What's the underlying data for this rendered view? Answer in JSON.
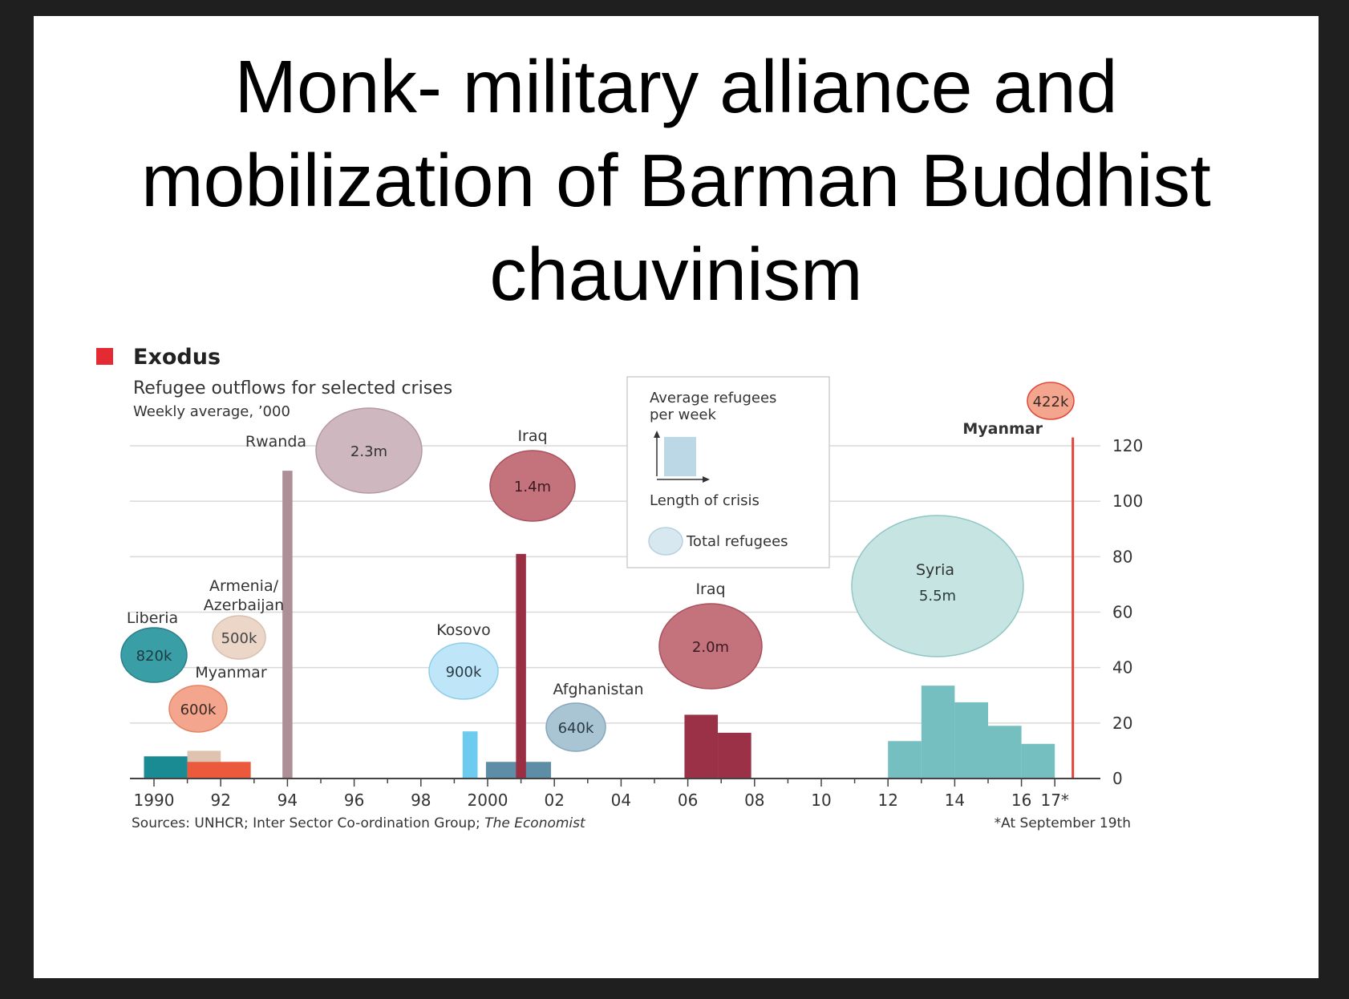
{
  "slide": {
    "title_lines": [
      "Monk- military alliance and",
      "mobilization of Barman Buddhist",
      "chauvinism"
    ]
  },
  "chart_data": {
    "type": "bar",
    "title": "Exodus",
    "subtitle": "Refugee outflows for selected crises",
    "unit_note": "Weekly average, ’000",
    "source": "Sources: UNHCR; Inter Sector Co-ordination Group; The Economist",
    "source_prefix": "Sources: UNHCR; Inter Sector Co-ordination Group; ",
    "source_italic": "The Economist",
    "footnote": "*At September 19th",
    "ylim": [
      0,
      120
    ],
    "yticks": [
      0,
      20,
      40,
      60,
      80,
      100,
      120
    ],
    "xlim": [
      1989,
      2017.8
    ],
    "xtick_labels": [
      {
        "year": 1990,
        "label": "1990"
      },
      {
        "year": 1992,
        "label": "92"
      },
      {
        "year": 1994,
        "label": "94"
      },
      {
        "year": 1996,
        "label": "96"
      },
      {
        "year": 1998,
        "label": "98"
      },
      {
        "year": 2000,
        "label": "2000"
      },
      {
        "year": 2002,
        "label": "02"
      },
      {
        "year": 2004,
        "label": "04"
      },
      {
        "year": 2006,
        "label": "06"
      },
      {
        "year": 2008,
        "label": "08"
      },
      {
        "year": 2010,
        "label": "10"
      },
      {
        "year": 2012,
        "label": "12"
      },
      {
        "year": 2014,
        "label": "14"
      },
      {
        "year": 2016,
        "label": "16"
      },
      {
        "year": 2017,
        "label": "17*"
      }
    ],
    "legend": {
      "bar_label": "Average refugees\nper week",
      "length_label": "Length of crisis",
      "circle_label": "Total refugees"
    },
    "colors": {
      "liberia": "#1a8a93",
      "armenia": "#dfc3b0",
      "myanmar1990": "#ec5a3e",
      "rwanda": "#ad8f98",
      "kosovo": "#6ccbef",
      "afghanistan": "#5d8ea6",
      "iraq2001": "#9a2f44",
      "iraq2006": "#9a3146",
      "syria": "#76bfc1",
      "myanmar2017": "#e0453a",
      "accent": "#e42b33",
      "legend_bar": "#bcd7e5",
      "grid": "#d9d9d9"
    },
    "series": [
      {
        "name": "Liberia",
        "total": "820k",
        "segments": [
          {
            "x0": 1989.7,
            "x1": 1991.7,
            "value": 8
          }
        ]
      },
      {
        "name": "Armenia/\nAzerbaijan",
        "total": "500k",
        "segments": [
          {
            "x0": 1991.0,
            "x1": 1992.0,
            "value": 10
          }
        ]
      },
      {
        "name": "Myanmar",
        "total": "600k",
        "segments": [
          {
            "x0": 1991.0,
            "x1": 1992.9,
            "value": 6
          }
        ]
      },
      {
        "name": "Rwanda",
        "total": "2.3m",
        "segments": [
          {
            "x0": 1993.85,
            "x1": 1994.15,
            "value": 111
          }
        ]
      },
      {
        "name": "Kosovo",
        "total": "900k",
        "segments": [
          {
            "x0": 1999.25,
            "x1": 1999.7,
            "value": 17
          }
        ]
      },
      {
        "name": "Afghanistan",
        "total": "640k",
        "segments": [
          {
            "x0": 1999.95,
            "x1": 2001.9,
            "value": 6
          }
        ]
      },
      {
        "name": "Iraq",
        "total": "1.4m",
        "segments": [
          {
            "x0": 2000.85,
            "x1": 2001.15,
            "value": 81
          }
        ]
      },
      {
        "name": "Iraq",
        "total": "2.0m",
        "segments": [
          {
            "x0": 2005.9,
            "x1": 2006.9,
            "value": 23
          },
          {
            "x0": 2006.9,
            "x1": 2007.9,
            "value": 16.5
          }
        ]
      },
      {
        "name": "Syria",
        "total": "5.5m",
        "segments": [
          {
            "x0": 2012.0,
            "x1": 2013.0,
            "value": 13.5
          },
          {
            "x0": 2013.0,
            "x1": 2014.0,
            "value": 33.5
          },
          {
            "x0": 2014.0,
            "x1": 2015.0,
            "value": 27.5
          },
          {
            "x0": 2015.0,
            "x1": 2016.0,
            "value": 19
          },
          {
            "x0": 2016.0,
            "x1": 2017.0,
            "value": 12.5
          }
        ]
      },
      {
        "name": "Myanmar",
        "total": "422k",
        "segments": [
          {
            "x0": 2017.5,
            "x1": 2017.58,
            "value": 123
          }
        ]
      }
    ]
  }
}
